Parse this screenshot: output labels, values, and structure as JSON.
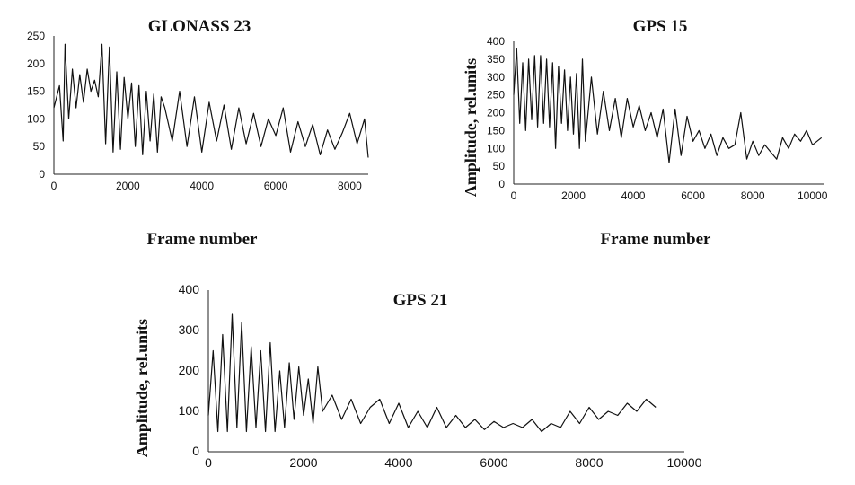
{
  "chart_data": [
    {
      "id": "glonass23",
      "type": "line",
      "title": "GLONASS 23",
      "xlabel": "Frame number",
      "ylabel": "",
      "xlim": [
        0,
        8500
      ],
      "ylim": [
        0,
        250
      ],
      "xticks": [
        0,
        2000,
        4000,
        6000,
        8000
      ],
      "yticks": [
        0,
        50,
        100,
        150,
        200,
        250
      ],
      "grid": false,
      "series": [
        {
          "x": [
            0,
            150,
            250,
            300,
            400,
            500,
            600,
            700,
            800,
            900,
            1000,
            1100,
            1200,
            1300,
            1400,
            1500,
            1600,
            1700,
            1800,
            1900,
            2000,
            2100,
            2200,
            2300,
            2400,
            2500,
            2600,
            2700,
            2800,
            2900,
            3000,
            3200,
            3400,
            3600,
            3800,
            4000,
            4200,
            4400,
            4600,
            4800,
            5000,
            5200,
            5400,
            5600,
            5800,
            6000,
            6200,
            6400,
            6600,
            6800,
            7000,
            7200,
            7400,
            7600,
            7800,
            8000,
            8200,
            8400,
            8500
          ],
          "y": [
            120,
            160,
            60,
            235,
            100,
            190,
            120,
            180,
            130,
            190,
            150,
            170,
            140,
            235,
            55,
            230,
            40,
            185,
            45,
            175,
            100,
            165,
            50,
            160,
            35,
            150,
            60,
            145,
            40,
            140,
            120,
            60,
            150,
            50,
            140,
            40,
            130,
            60,
            125,
            45,
            120,
            55,
            110,
            50,
            100,
            70,
            120,
            40,
            95,
            50,
            90,
            35,
            80,
            45,
            75,
            110,
            55,
            100,
            30
          ]
        }
      ]
    },
    {
      "id": "gps15",
      "type": "line",
      "title": "GPS 15",
      "xlabel": "Frame number",
      "ylabel": "Amplitude, rel.units",
      "xlim": [
        0,
        10400
      ],
      "ylim": [
        0,
        400
      ],
      "xticks": [
        0,
        2000,
        4000,
        6000,
        8000,
        10000
      ],
      "yticks": [
        0,
        50,
        100,
        150,
        200,
        250,
        300,
        350,
        400
      ],
      "grid": false,
      "series": [
        {
          "x": [
            0,
            100,
            200,
            300,
            400,
            500,
            600,
            700,
            800,
            900,
            1000,
            1100,
            1200,
            1300,
            1400,
            1500,
            1600,
            1700,
            1800,
            1900,
            2000,
            2100,
            2200,
            2300,
            2400,
            2600,
            2800,
            3000,
            3200,
            3400,
            3600,
            3800,
            4000,
            4200,
            4400,
            4600,
            4800,
            5000,
            5200,
            5400,
            5600,
            5800,
            6000,
            6200,
            6400,
            6600,
            6800,
            7000,
            7200,
            7400,
            7600,
            7800,
            8000,
            8200,
            8400,
            8600,
            8800,
            9000,
            9200,
            9400,
            9600,
            9800,
            10000,
            10300
          ],
          "y": [
            250,
            380,
            170,
            340,
            150,
            350,
            180,
            360,
            160,
            360,
            170,
            350,
            160,
            340,
            100,
            330,
            170,
            320,
            150,
            300,
            140,
            310,
            100,
            350,
            120,
            300,
            140,
            260,
            150,
            240,
            130,
            240,
            160,
            220,
            150,
            200,
            130,
            210,
            60,
            210,
            80,
            190,
            120,
            150,
            100,
            140,
            80,
            130,
            100,
            110,
            200,
            70,
            120,
            80,
            110,
            90,
            70,
            130,
            100,
            140,
            120,
            150,
            110,
            130
          ]
        }
      ]
    },
    {
      "id": "gps21",
      "type": "line",
      "title": "GPS 21",
      "xlabel": "",
      "ylabel": "Amplitude, rel.units",
      "xlim": [
        0,
        10000
      ],
      "ylim": [
        0,
        400
      ],
      "xticks": [
        0,
        2000,
        4000,
        6000,
        8000,
        10000
      ],
      "yticks": [
        0,
        100,
        200,
        300,
        400
      ],
      "grid": false,
      "series": [
        {
          "x": [
            0,
            100,
            200,
            300,
            400,
            500,
            600,
            700,
            800,
            900,
            1000,
            1100,
            1200,
            1300,
            1400,
            1500,
            1600,
            1700,
            1800,
            1900,
            2000,
            2100,
            2200,
            2300,
            2400,
            2600,
            2800,
            3000,
            3200,
            3400,
            3600,
            3800,
            4000,
            4200,
            4400,
            4600,
            4800,
            5000,
            5200,
            5400,
            5600,
            5800,
            6000,
            6200,
            6400,
            6600,
            6800,
            7000,
            7200,
            7400,
            7600,
            7800,
            8000,
            8200,
            8400,
            8600,
            8800,
            9000,
            9200,
            9400
          ],
          "y": [
            90,
            250,
            50,
            290,
            50,
            340,
            60,
            320,
            50,
            260,
            60,
            250,
            50,
            270,
            50,
            200,
            60,
            220,
            80,
            210,
            90,
            180,
            70,
            210,
            100,
            140,
            80,
            130,
            70,
            110,
            130,
            70,
            120,
            60,
            100,
            60,
            110,
            60,
            90,
            60,
            80,
            55,
            75,
            60,
            70,
            60,
            80,
            50,
            70,
            60,
            100,
            70,
            110,
            80,
            100,
            90,
            120,
            100,
            130,
            110
          ]
        }
      ]
    }
  ]
}
